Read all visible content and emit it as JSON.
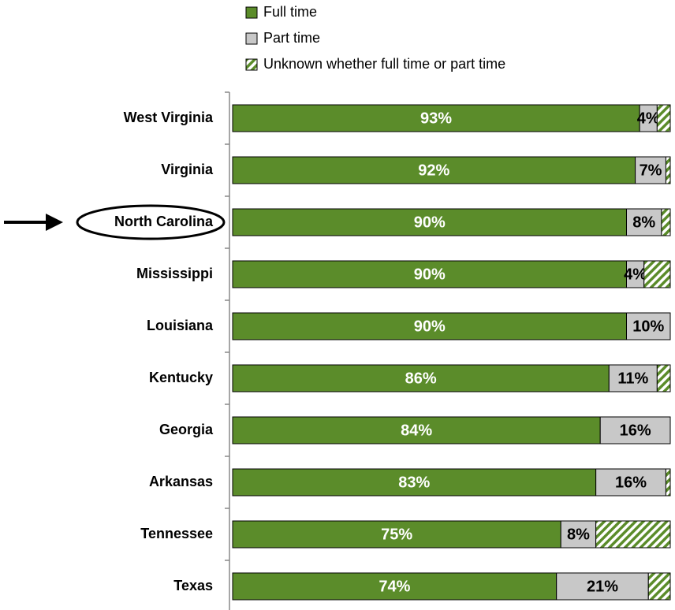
{
  "chart_data": {
    "type": "stacked_barh",
    "categories": [
      "West Virginia",
      "Virginia",
      "North Carolina",
      "Mississippi",
      "Louisiana",
      "Kentucky",
      "Georgia",
      "Arkansas",
      "Tennessee",
      "Texas"
    ],
    "series": [
      {
        "name": "Full time",
        "color": "#5b8c2a",
        "pattern": "solid",
        "values": [
          93,
          92,
          90,
          90,
          90,
          86,
          84,
          83,
          75,
          74
        ],
        "value_labels": [
          "93%",
          "92%",
          "90%",
          "90%",
          "90%",
          "86%",
          "84%",
          "83%",
          "75%",
          "74%"
        ]
      },
      {
        "name": "Part time",
        "color": "#c8c8c8",
        "pattern": "solid",
        "values": [
          4,
          7,
          8,
          4,
          10,
          11,
          16,
          16,
          8,
          21
        ],
        "value_labels": [
          "4%",
          "7%",
          "8%",
          "4%",
          "10%",
          "11%",
          "16%",
          "16%",
          "8%",
          "21%"
        ]
      },
      {
        "name": "Unknown whether full time or part time",
        "color": "#5b8c2a",
        "pattern": "hatch",
        "values": [
          3,
          1,
          2,
          6,
          0,
          3,
          0,
          1,
          17,
          5
        ]
      }
    ],
    "xlim": [
      0,
      100
    ],
    "highlight": "North Carolina"
  }
}
